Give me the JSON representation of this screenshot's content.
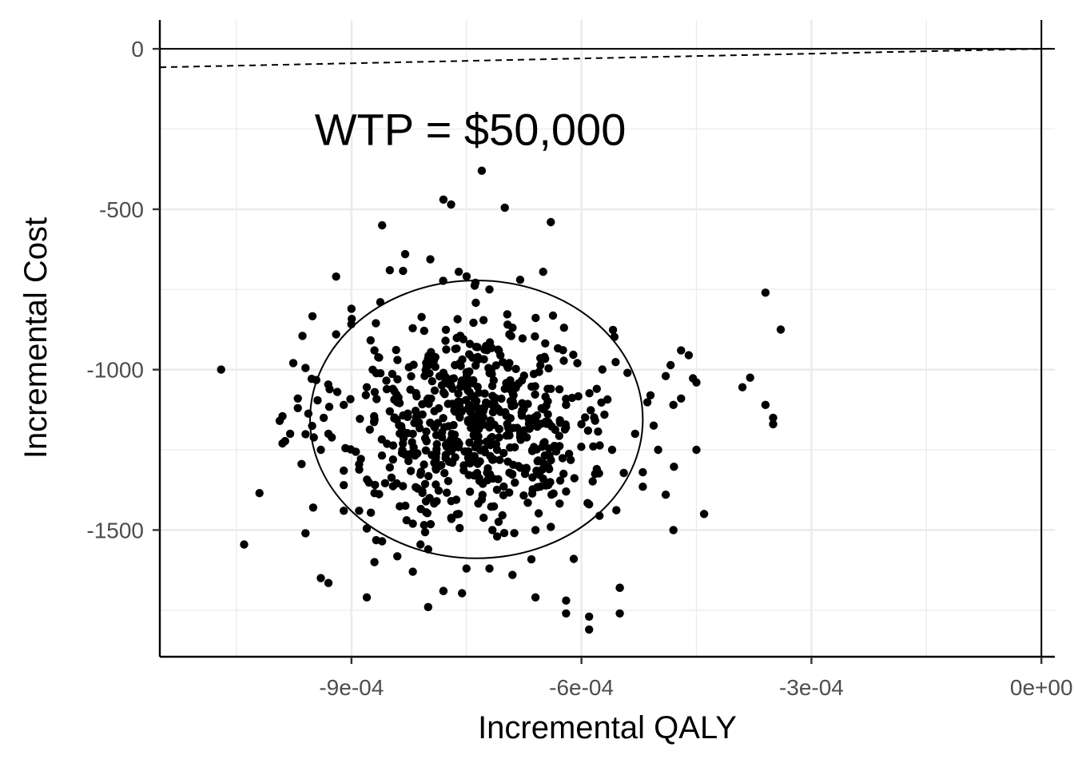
{
  "chart_data": {
    "type": "scatter",
    "title": "",
    "xlabel": "Incremental QALY",
    "ylabel": "Incremental Cost",
    "xlim": [
      -0.00115,
      1.75e-05
    ],
    "ylim": [
      -1895,
      90
    ],
    "x_ticks": [
      -0.0009,
      -0.0006,
      -0.0003,
      0.0
    ],
    "x_tick_labels": [
      "-9e-04",
      "-6e-04",
      "-3e-04",
      "0e+00"
    ],
    "y_ticks": [
      0,
      -500,
      -1000,
      -1500
    ],
    "y_tick_labels": [
      "0",
      "-500",
      "-1000",
      "-1500"
    ],
    "grid": true,
    "legend": "none",
    "annotation": {
      "text": "WTP = $50,000",
      "x": -0.000745,
      "y": -250
    },
    "wtp_line": {
      "slope": 50000,
      "style": "dashed"
    },
    "reference_lines": {
      "x": 0,
      "y": 0
    },
    "ellipse": {
      "center_x": -0.000737,
      "center_y": -1155,
      "semi_x": 0.000217,
      "semi_y": 433
    },
    "points_x": [
      -0.00107,
      -0.00104,
      -0.00102,
      -0.00099,
      -0.00099,
      -0.00098,
      -0.00097,
      -0.00096,
      -0.00096,
      -0.00095,
      -0.00094,
      -0.00093,
      -0.00093,
      -0.00092,
      -0.00091,
      -0.00091,
      -0.0009,
      -0.00089,
      -0.00089,
      -0.00088,
      -0.00088,
      -0.00087,
      -0.00087,
      -0.00086,
      -0.00085,
      -0.00085,
      -0.00084,
      -0.00083,
      -0.00082,
      -0.00082,
      -0.00081,
      -0.0008,
      -0.00079,
      -0.00078,
      -0.00078,
      -0.00077,
      -0.00076,
      -0.00076,
      -0.00075,
      -0.00074,
      -0.00074,
      -0.00073,
      -0.00072,
      -0.00071,
      -0.00071,
      -0.0007,
      -0.00069,
      -0.00068,
      -0.00067,
      -0.00066,
      -0.00066,
      -0.00065,
      -0.00064,
      -0.00064,
      -0.00063,
      -0.00062,
      -0.00062,
      -0.00061,
      -0.0006,
      -0.00059,
      -0.00058,
      -0.00058,
      -0.00057,
      -0.00056,
      -0.00055,
      -0.00054,
      -0.00053,
      -0.00052,
      -0.00051,
      -0.0005,
      -0.00049,
      -0.00048,
      -0.00047,
      -0.00046,
      -0.00045,
      -0.00044,
      -0.00039,
      -0.00038,
      -0.00036,
      -0.00036,
      -0.00035,
      -0.00035,
      -0.00034,
      -0.00083,
      -0.00078,
      -0.00077,
      -0.00073,
      -0.00076,
      -0.0007,
      -0.00072,
      -0.00064,
      -0.00065,
      -0.00092,
      -0.00088,
      -0.00086,
      -0.00085,
      -0.00082,
      -0.0008,
      -0.00078,
      -0.00068,
      -0.00059,
      -0.00059,
      -0.00062,
      -0.00062,
      -0.00055,
      -0.00055,
      -0.00052,
      -0.00048,
      -0.00045,
      -0.00047,
      -0.00049,
      -0.00091,
      -0.00087,
      -0.00094,
      -0.00097,
      -0.00091,
      -0.00084,
      -0.0008,
      -0.00072,
      -0.00066
    ],
    "points_y": [
      -1000,
      -1545,
      -1385,
      -1230,
      -1145,
      -1200,
      -1090,
      -1510,
      -995,
      -1430,
      -1250,
      -1200,
      -1665,
      -890,
      -1110,
      -1360,
      -810,
      -1295,
      -1440,
      -1055,
      -1495,
      -940,
      -1385,
      -1535,
      -1130,
      -1305,
      -970,
      -1265,
      -1480,
      -1200,
      -1545,
      -1090,
      -1280,
      -1690,
      -1010,
      -1230,
      -1450,
      -1130,
      -1620,
      -1330,
      -1090,
      -1405,
      -1180,
      -1520,
      -1250,
      -1060,
      -1640,
      -1210,
      -1415,
      -1160,
      -1710,
      -1340,
      -1060,
      -1490,
      -1240,
      -1380,
      -1110,
      -1590,
      -1170,
      -1420,
      -1060,
      -1310,
      -1140,
      -1250,
      -1680,
      -1010,
      -1200,
      -1365,
      -1080,
      -1250,
      -1020,
      -1110,
      -940,
      -955,
      -1040,
      -1450,
      -1055,
      -1025,
      -760,
      -1110,
      -1170,
      -1150,
      -875,
      -640,
      -470,
      -485,
      -380,
      -695,
      -495,
      -750,
      -540,
      -695,
      -710,
      -1710,
      -550,
      -690,
      -1630,
      -1740,
      -1690,
      -720,
      -1810,
      -1770,
      -1760,
      -1720,
      -1680,
      -1760,
      -1320,
      -1500,
      -1250,
      -1090,
      -1390,
      -1315,
      -1600,
      -1650,
      -1120,
      -1440,
      -1030,
      -1560,
      -1620,
      -1500
    ],
    "cloud_points": {
      "count": 600,
      "center_x": -0.000738,
      "center_y": -1155,
      "sd_x": 8.8e-05,
      "sd_y": 165
    }
  }
}
